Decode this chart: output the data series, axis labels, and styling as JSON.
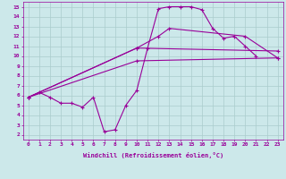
{
  "xlabel": "Windchill (Refroidissement éolien,°C)",
  "background_color": "#cce8ea",
  "grid_color": "#aacccc",
  "line_color": "#990099",
  "xlim": [
    -0.5,
    23.5
  ],
  "ylim": [
    1.5,
    15.5
  ],
  "xticks": [
    0,
    1,
    2,
    3,
    4,
    5,
    6,
    7,
    8,
    9,
    10,
    11,
    12,
    13,
    14,
    15,
    16,
    17,
    18,
    19,
    20,
    21,
    22,
    23
  ],
  "yticks": [
    2,
    3,
    4,
    5,
    6,
    7,
    8,
    9,
    10,
    11,
    12,
    13,
    14,
    15
  ],
  "lines": [
    {
      "x": [
        0,
        1,
        2,
        3,
        4,
        5,
        6,
        7,
        8,
        9,
        10,
        11,
        12,
        13,
        14,
        15,
        16,
        17,
        18,
        19,
        20,
        21
      ],
      "y": [
        5.8,
        6.3,
        5.8,
        5.2,
        5.2,
        4.8,
        5.8,
        2.3,
        2.5,
        5.0,
        6.5,
        10.8,
        14.8,
        15.0,
        15.0,
        15.0,
        14.7,
        12.8,
        11.8,
        12.0,
        11.0,
        10.0
      ]
    },
    {
      "x": [
        0,
        10,
        23
      ],
      "y": [
        5.8,
        9.5,
        9.8
      ]
    },
    {
      "x": [
        0,
        10,
        23
      ],
      "y": [
        5.8,
        10.8,
        10.5
      ]
    },
    {
      "x": [
        0,
        10,
        12,
        13,
        20,
        23
      ],
      "y": [
        5.8,
        10.8,
        12.0,
        12.8,
        12.0,
        9.8
      ]
    }
  ]
}
